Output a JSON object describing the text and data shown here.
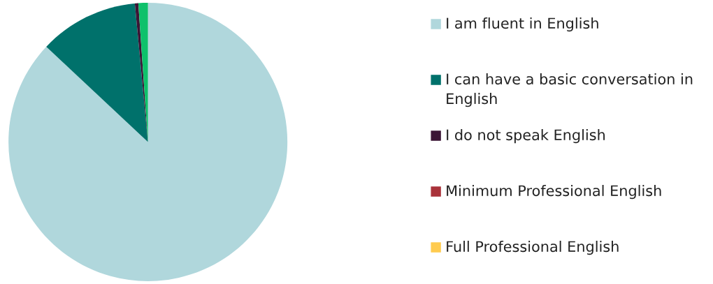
{
  "chart_data": {
    "type": "pie",
    "categories": [
      "I am fluent in English",
      "I can have a basic conversation in English",
      "I do not speak English",
      "Minimum Professional English",
      "Full Professional English",
      null
    ],
    "values": [
      87.0,
      11.5,
      0.4,
      0,
      0,
      1.1
    ],
    "colors": [
      "#b0d7dc",
      "#00716b",
      "#3b1535",
      "#a9323a",
      "#ffcb4f",
      "#0ec16b"
    ],
    "legend": "right"
  }
}
